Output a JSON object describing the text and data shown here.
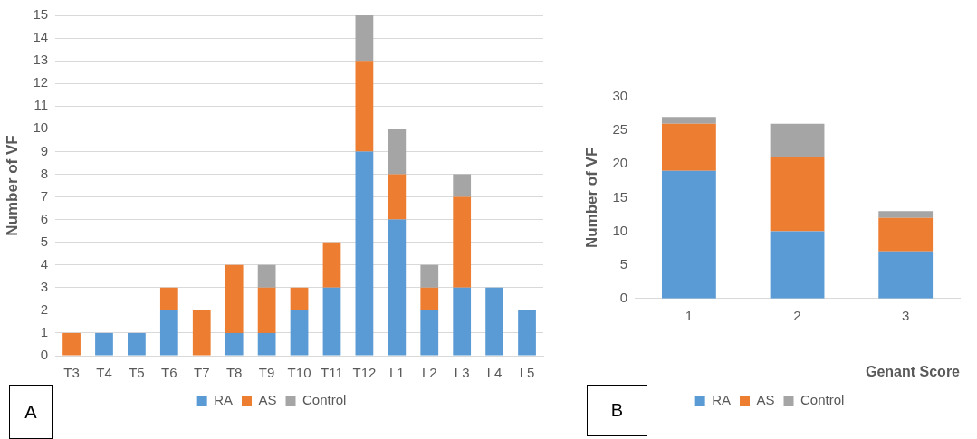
{
  "chart_data": [
    {
      "type": "bar",
      "stacked": true,
      "ylabel": "Number of VF",
      "categories": [
        "T3",
        "T4",
        "T5",
        "T6",
        "T7",
        "T8",
        "T9",
        "T10",
        "T11",
        "T12",
        "L1",
        "L2",
        "L3",
        "L4",
        "L5"
      ],
      "series": [
        {
          "name": "RA",
          "color": "#5b9bd5",
          "values": [
            0,
            1,
            1,
            2,
            0,
            1,
            1,
            2,
            3,
            9,
            6,
            2,
            3,
            3,
            2
          ]
        },
        {
          "name": "AS",
          "color": "#ed7d31",
          "values": [
            1,
            0,
            0,
            1,
            2,
            3,
            2,
            1,
            2,
            4,
            2,
            1,
            4,
            0,
            0
          ]
        },
        {
          "name": "Control",
          "color": "#a5a5a5",
          "values": [
            0,
            0,
            0,
            0,
            0,
            0,
            1,
            0,
            0,
            2,
            2,
            1,
            1,
            0,
            0
          ]
        }
      ],
      "ylim": [
        0,
        15
      ],
      "yticks": [
        0,
        1,
        2,
        3,
        4,
        5,
        6,
        7,
        8,
        9,
        10,
        11,
        12,
        13,
        14,
        15
      ],
      "grid": "y",
      "legend": "bottom",
      "annotations": [
        "A"
      ]
    },
    {
      "type": "bar",
      "stacked": true,
      "ylabel": "Number of VF",
      "xlabel": "Genant Score",
      "categories": [
        "1",
        "2",
        "3"
      ],
      "series": [
        {
          "name": "RA",
          "color": "#5b9bd5",
          "values": [
            19,
            10,
            7
          ]
        },
        {
          "name": "AS",
          "color": "#ed7d31",
          "values": [
            7,
            11,
            5
          ]
        },
        {
          "name": "Control",
          "color": "#a5a5a5",
          "values": [
            1,
            5,
            1
          ]
        }
      ],
      "ylim": [
        0,
        30
      ],
      "yticks": [
        0,
        5,
        10,
        15,
        20,
        25,
        30
      ],
      "grid": false,
      "legend": "bottom",
      "annotations": [
        "B"
      ]
    }
  ]
}
